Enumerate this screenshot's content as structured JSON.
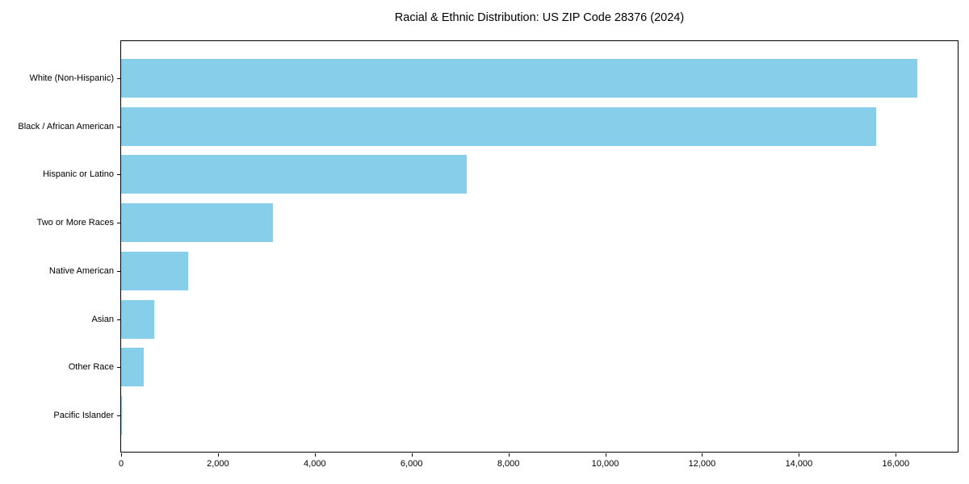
{
  "chart_data": {
    "type": "bar",
    "orientation": "horizontal",
    "title": "Racial & Ethnic Distribution: US ZIP Code 28376 (2024)",
    "categories": [
      "White (Non-Hispanic)",
      "Black / African American",
      "Hispanic or Latino",
      "Two or More Races",
      "Native American",
      "Asian",
      "Other Race",
      "Pacific Islander"
    ],
    "values": [
      16450,
      15600,
      7130,
      3130,
      1390,
      680,
      470,
      20
    ],
    "xlabel": "",
    "ylabel": "",
    "xlim": [
      0,
      17280
    ],
    "xticks": [
      0,
      2000,
      4000,
      6000,
      8000,
      10000,
      12000,
      14000,
      16000
    ],
    "xtick_labels": [
      "0",
      "2,000",
      "4,000",
      "6,000",
      "8,000",
      "10,000",
      "12,000",
      "14,000",
      "16,000"
    ],
    "grid": "off",
    "legend": "none",
    "bar_color": "#87CEEB",
    "frame_color": "#000000",
    "background_color": "#ffffff"
  }
}
